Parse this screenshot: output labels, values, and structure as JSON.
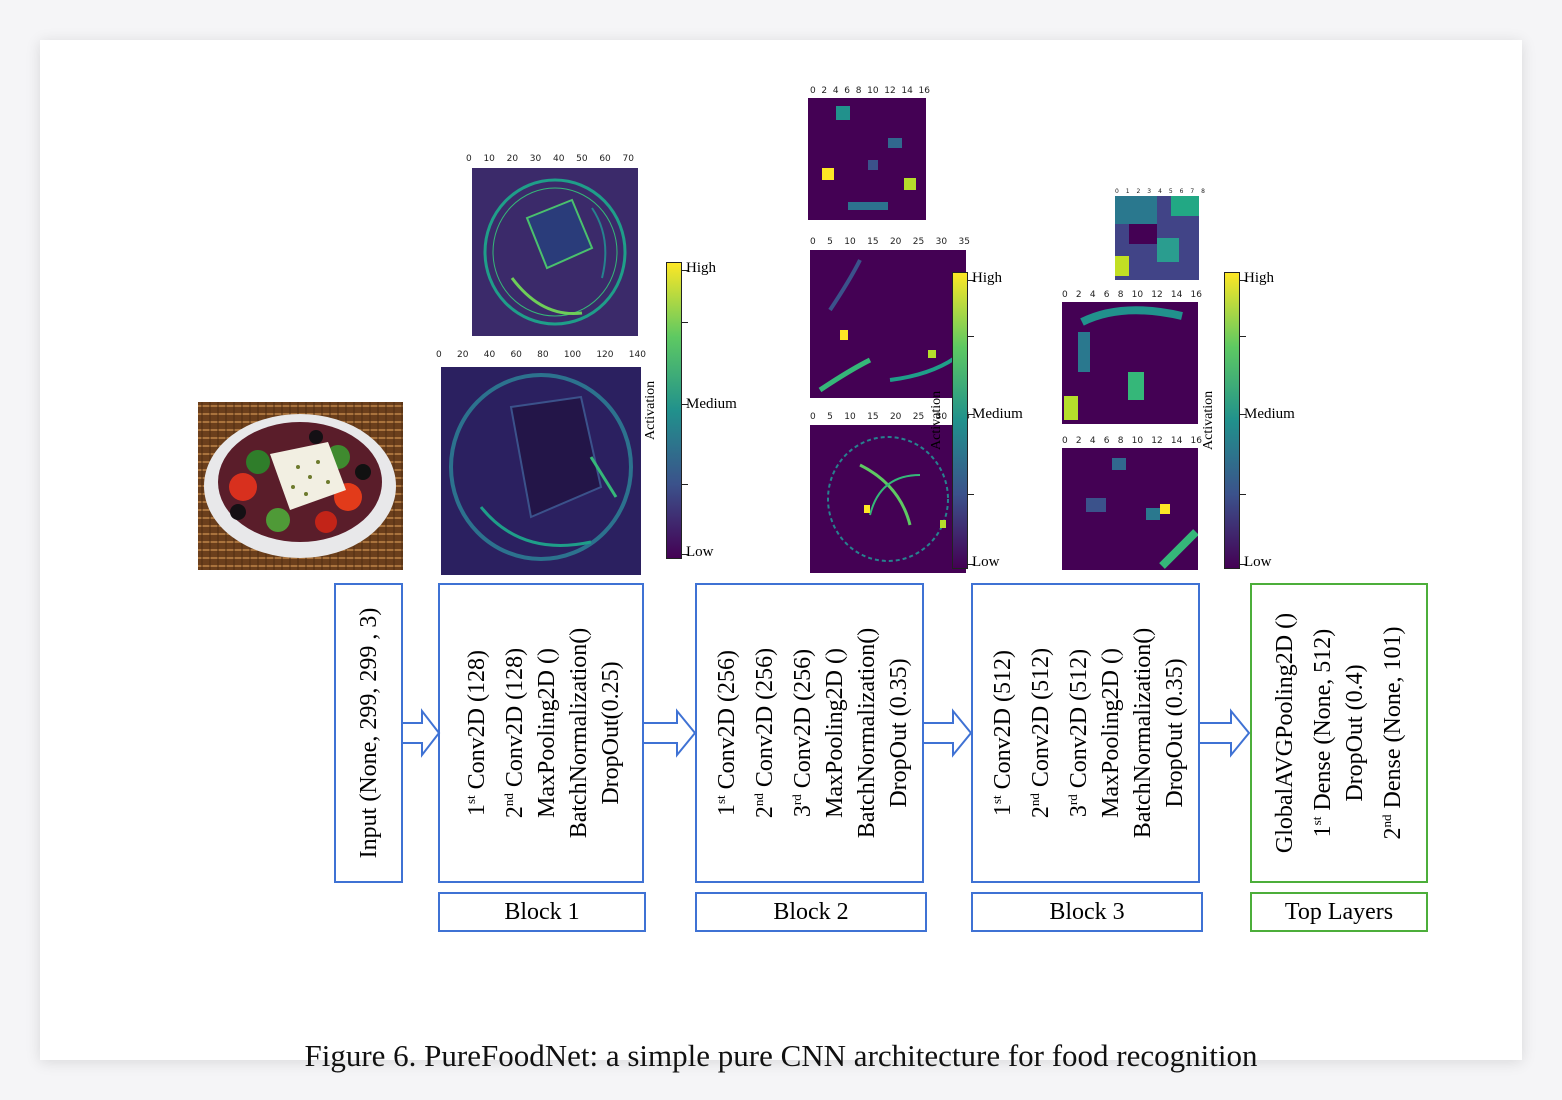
{
  "figure": {
    "caption": "Figure 6. PureFoodNet: a simple pure CNN architecture for food recognition",
    "input_label": "Input (None, 299, 299 , 3)",
    "blocks": [
      {
        "title": "Block 1",
        "layers": [
          {
            "sup": "st",
            "text": "1",
            "rest": " Conv2D (128)"
          },
          {
            "sup": "nd",
            "text": "2",
            "rest": " Conv2D (128)"
          },
          {
            "sup": "",
            "text": "MaxPooling2D ()",
            "rest": ""
          },
          {
            "sup": "",
            "text": "BatchNormalization()",
            "rest": ""
          },
          {
            "sup": "",
            "text": "DropOut(0.25)",
            "rest": ""
          }
        ]
      },
      {
        "title": "Block 2",
        "layers": [
          {
            "sup": "st",
            "text": "1",
            "rest": " Conv2D (256)"
          },
          {
            "sup": "nd",
            "text": "2",
            "rest": " Conv2D (256)"
          },
          {
            "sup": "rd",
            "text": "3",
            "rest": " Conv2D (256)"
          },
          {
            "sup": "",
            "text": "MaxPooling2D ()",
            "rest": ""
          },
          {
            "sup": "",
            "text": "BatchNormalization()",
            "rest": ""
          },
          {
            "sup": "",
            "text": "DropOut (0.35)",
            "rest": ""
          }
        ]
      },
      {
        "title": "Block 3",
        "layers": [
          {
            "sup": "st",
            "text": "1",
            "rest": " Conv2D (512)"
          },
          {
            "sup": "nd",
            "text": "2",
            "rest": " Conv2D (512)"
          },
          {
            "sup": "rd",
            "text": "3",
            "rest": " Conv2D (512)"
          },
          {
            "sup": "",
            "text": "MaxPooling2D ()",
            "rest": ""
          },
          {
            "sup": "",
            "text": "BatchNormalization()",
            "rest": ""
          },
          {
            "sup": "",
            "text": "DropOut (0.35)",
            "rest": ""
          }
        ]
      }
    ],
    "top": {
      "title": "Top Layers",
      "layers": [
        {
          "sup": "",
          "text": "GlobalAVGPooling2D ()",
          "rest": ""
        },
        {
          "sup": "st",
          "text": "1",
          "rest": " Dense (None, 512)"
        },
        {
          "sup": "",
          "text": "DropOut (0.4)",
          "rest": ""
        },
        {
          "sup": "nd",
          "text": "2",
          "rest": " Dense (None, 101)"
        }
      ]
    },
    "colorbar": {
      "high": "High",
      "medium": "Medium",
      "low": "Low",
      "axis_label": "Activation"
    },
    "feature_map_ticks": {
      "b1_small": [
        "0",
        "10",
        "20",
        "30",
        "40",
        "50",
        "60",
        "70"
      ],
      "b1_large": [
        "0",
        "20",
        "40",
        "60",
        "80",
        "100",
        "120",
        "140"
      ],
      "b2_small": [
        "0",
        "2",
        "4",
        "6",
        "8",
        "10",
        "12",
        "14",
        "16"
      ],
      "b2_large": [
        "0",
        "5",
        "10",
        "15",
        "20",
        "25",
        "30",
        "35"
      ],
      "b3_small": [
        "0",
        "1",
        "2",
        "3",
        "4",
        "5",
        "6",
        "7",
        "8"
      ],
      "b3_large": [
        "0",
        "2",
        "4",
        "6",
        "8",
        "10",
        "12",
        "14",
        "16"
      ]
    },
    "colors": {
      "block_border": "#3f72d4",
      "top_border": "#4cae3a"
    }
  }
}
